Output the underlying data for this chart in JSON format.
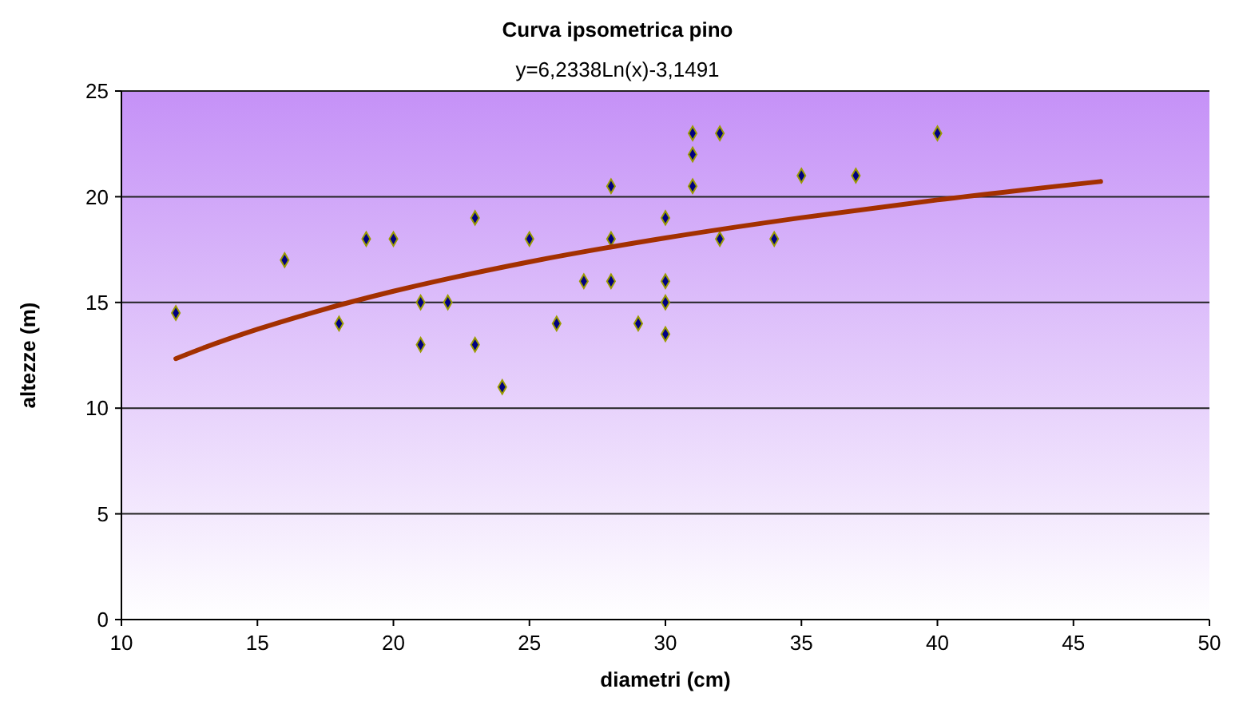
{
  "chart_data": {
    "type": "scatter",
    "title": "Curva ipsometrica pino",
    "subtitle": "y=6,2338Ln(x)-3,1491",
    "xlabel": "diametri (cm)",
    "ylabel": "altezze (m)",
    "xlim": [
      10,
      50
    ],
    "xticks": [
      10,
      15,
      20,
      25,
      30,
      35,
      40,
      45,
      50
    ],
    "ylim": [
      0,
      25
    ],
    "yticks": [
      0,
      5,
      10,
      15,
      20,
      25
    ],
    "grid": "y",
    "series": [
      {
        "color": "#000080",
        "marker": "diamond",
        "x": [
          12,
          16,
          18,
          19,
          20,
          21,
          21,
          22,
          23,
          23,
          24,
          25,
          26,
          27,
          28,
          28,
          28,
          29,
          30,
          30,
          30,
          30,
          31,
          31,
          31,
          32,
          32,
          34,
          35,
          37,
          40
        ],
        "values": [
          14.5,
          17,
          14,
          18,
          18,
          15,
          13,
          15,
          19,
          13,
          11,
          18,
          14,
          16,
          20.5,
          18,
          16,
          14,
          19,
          16,
          15,
          13.5,
          23,
          22,
          20.5,
          23,
          18,
          18,
          21,
          21,
          23
        ]
      },
      {
        "type": "line",
        "color": "#a33000",
        "marker": "none",
        "line_style": "solid",
        "x": [
          12,
          13,
          15,
          17,
          20,
          22,
          25,
          30,
          35,
          40,
          46
        ],
        "values": [
          12.34,
          12.84,
          13.73,
          14.51,
          15.53,
          16.12,
          16.92,
          18.05,
          19.01,
          19.85,
          20.72
        ]
      }
    ]
  }
}
